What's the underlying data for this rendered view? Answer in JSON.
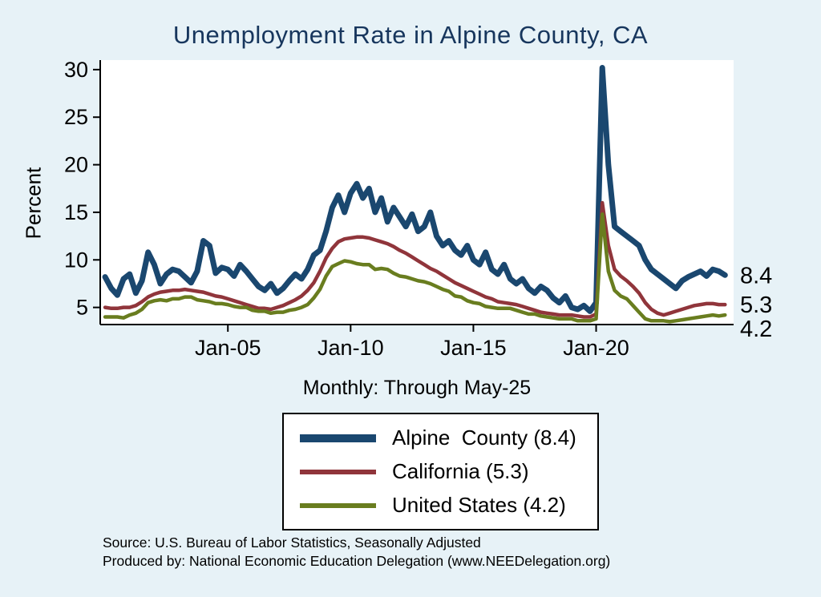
{
  "title": "Unemployment Rate in Alpine  County, CA",
  "subtitle": "Monthly: Through May-25",
  "y_axis_title": "Percent",
  "source_line1": "Source: U.S. Bureau of Labor Statistics, Seasonally Adjusted",
  "source_line2": "Produced by: National Economic Education Delegation (www.NEEDelegation.org)",
  "end_labels": [
    "8.4",
    "5.3",
    "4.2"
  ],
  "colors": {
    "background": "#e7f2f7",
    "plot_bg": "#ffffff",
    "title": "#17365d",
    "axis": "#000000",
    "alpine": "#1a476f",
    "california": "#90353b",
    "united_states": "#697d1f"
  },
  "legend": {
    "items": [
      {
        "label": "Alpine  County (8.4)",
        "color": "#1a476f"
      },
      {
        "label": "California (5.3)",
        "color": "#90353b"
      },
      {
        "label": "United States (4.2)",
        "color": "#697d1f"
      }
    ]
  },
  "chart_data": {
    "type": "line",
    "title": "Unemployment Rate in Alpine  County, CA",
    "subtitle": "Monthly: Through May-25",
    "xlabel": "",
    "ylabel": "Percent",
    "grid": false,
    "legend_position": "bottom",
    "x_unit": "decimal_year",
    "x_start": 2000.0,
    "x_step": 0.25,
    "xlim": [
      1999.8,
      2025.6
    ],
    "ylim": [
      3.2,
      31
    ],
    "y_ticks": [
      5,
      10,
      15,
      20,
      25,
      30
    ],
    "x_ticks": [
      {
        "value": 2005,
        "label": "Jan-05"
      },
      {
        "value": 2010,
        "label": "Jan-10"
      },
      {
        "value": 2015,
        "label": "Jan-15"
      },
      {
        "value": 2020,
        "label": "Jan-20"
      }
    ],
    "series": [
      {
        "name": "Alpine  County (8.4)",
        "key": "alpine-county",
        "color": "#1a476f",
        "width": 7,
        "latest_value": 8.4,
        "values": [
          8.2,
          7.0,
          6.3,
          8.0,
          8.5,
          6.5,
          7.8,
          10.8,
          9.5,
          7.5,
          8.5,
          9.0,
          8.8,
          8.2,
          7.6,
          8.8,
          12.0,
          11.5,
          8.6,
          9.2,
          9.0,
          8.3,
          9.5,
          8.8,
          8.0,
          7.2,
          6.8,
          7.5,
          6.5,
          7.0,
          7.8,
          8.5,
          8.0,
          9.0,
          10.5,
          11.0,
          13.0,
          15.5,
          16.8,
          15.0,
          17.0,
          18.0,
          16.5,
          17.5,
          15.0,
          16.5,
          14.0,
          15.5,
          14.5,
          13.5,
          14.8,
          13.0,
          13.5,
          15.0,
          12.5,
          11.5,
          12.0,
          11.0,
          10.5,
          11.5,
          10.0,
          9.5,
          10.8,
          9.0,
          8.5,
          9.5,
          8.0,
          7.5,
          8.0,
          7.0,
          6.5,
          7.2,
          6.8,
          6.0,
          5.5,
          6.2,
          5.0,
          4.8,
          5.2,
          4.6,
          5.5,
          30.2,
          20.0,
          13.5,
          13.0,
          12.5,
          12.0,
          11.5,
          10.0,
          9.0,
          8.5,
          8.0,
          7.5,
          7.0,
          7.8,
          8.2,
          8.5,
          8.8,
          8.3,
          9.0,
          8.8,
          8.4
        ]
      },
      {
        "name": "California (5.3)",
        "key": "california",
        "color": "#90353b",
        "width": 4.5,
        "latest_value": 5.3,
        "values": [
          5.0,
          4.9,
          4.9,
          5.0,
          5.0,
          5.2,
          5.6,
          6.1,
          6.4,
          6.6,
          6.7,
          6.8,
          6.8,
          6.9,
          6.8,
          6.7,
          6.6,
          6.4,
          6.2,
          6.1,
          5.9,
          5.7,
          5.5,
          5.3,
          5.1,
          4.9,
          4.9,
          4.8,
          5.0,
          5.2,
          5.5,
          5.8,
          6.2,
          6.8,
          7.6,
          8.8,
          10.2,
          11.2,
          11.9,
          12.2,
          12.3,
          12.4,
          12.4,
          12.3,
          12.1,
          11.9,
          11.7,
          11.4,
          11.0,
          10.7,
          10.3,
          9.9,
          9.5,
          9.1,
          8.8,
          8.4,
          8.0,
          7.6,
          7.3,
          7.0,
          6.7,
          6.4,
          6.1,
          5.9,
          5.6,
          5.5,
          5.4,
          5.3,
          5.1,
          4.9,
          4.7,
          4.5,
          4.4,
          4.3,
          4.2,
          4.2,
          4.2,
          4.1,
          4.0,
          4.0,
          4.3,
          16.0,
          11.5,
          9.0,
          8.3,
          7.8,
          7.2,
          6.5,
          5.5,
          4.8,
          4.4,
          4.2,
          4.4,
          4.6,
          4.8,
          5.0,
          5.2,
          5.3,
          5.4,
          5.4,
          5.3,
          5.3
        ]
      },
      {
        "name": "United States (4.2)",
        "key": "united-states",
        "color": "#697d1f",
        "width": 4.5,
        "latest_value": 4.2,
        "values": [
          4.0,
          4.0,
          4.0,
          3.9,
          4.2,
          4.4,
          4.8,
          5.5,
          5.7,
          5.8,
          5.7,
          5.9,
          5.9,
          6.1,
          6.1,
          5.8,
          5.7,
          5.6,
          5.4,
          5.4,
          5.3,
          5.1,
          5.0,
          5.0,
          4.7,
          4.6,
          4.6,
          4.4,
          4.5,
          4.5,
          4.7,
          4.8,
          5.0,
          5.3,
          6.0,
          6.9,
          8.3,
          9.3,
          9.6,
          9.9,
          9.8,
          9.6,
          9.5,
          9.5,
          9.0,
          9.1,
          9.0,
          8.6,
          8.3,
          8.2,
          8.0,
          7.8,
          7.7,
          7.5,
          7.2,
          6.9,
          6.7,
          6.2,
          6.1,
          5.7,
          5.5,
          5.4,
          5.1,
          5.0,
          4.9,
          4.9,
          4.9,
          4.7,
          4.5,
          4.3,
          4.3,
          4.1,
          4.0,
          3.9,
          3.8,
          3.8,
          3.8,
          3.6,
          3.6,
          3.6,
          3.8,
          14.8,
          8.8,
          6.8,
          6.2,
          5.9,
          5.2,
          4.5,
          3.8,
          3.6,
          3.6,
          3.6,
          3.5,
          3.6,
          3.7,
          3.8,
          3.9,
          4.0,
          4.1,
          4.2,
          4.1,
          4.2
        ]
      }
    ]
  }
}
